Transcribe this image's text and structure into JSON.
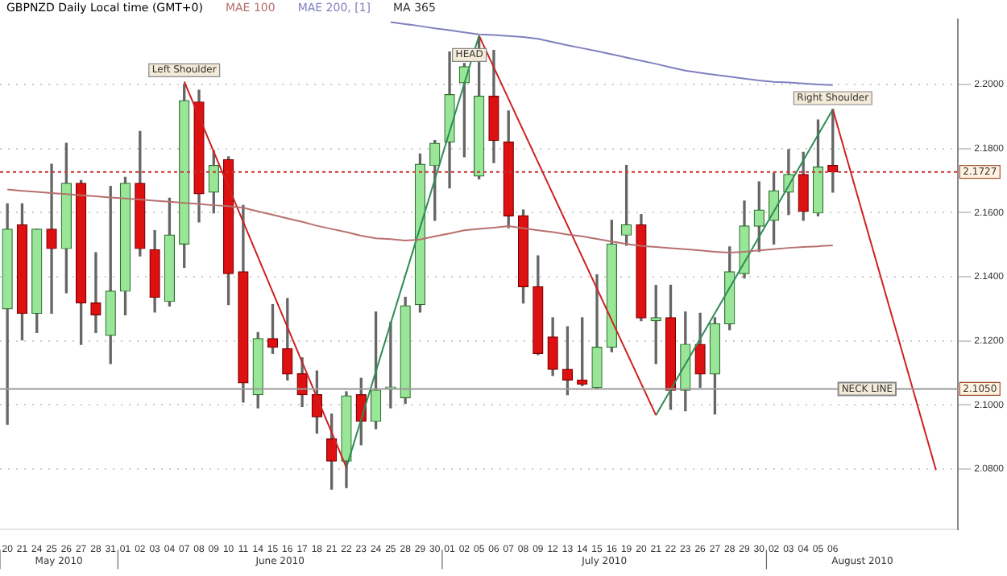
{
  "chart_data": {
    "type": "candlestick",
    "title": "GBPNZD Daily Local time (GMT+0)",
    "categories": [
      "20",
      "21",
      "24",
      "25",
      "26",
      "27",
      "28",
      "31",
      "01",
      "02",
      "03",
      "04",
      "07",
      "08",
      "09",
      "10",
      "11",
      "14",
      "15",
      "16",
      "17",
      "18",
      "21",
      "22",
      "23",
      "24",
      "25",
      "28",
      "29",
      "30",
      "01",
      "02",
      "05",
      "06",
      "07",
      "08",
      "09",
      "12",
      "13",
      "14",
      "15",
      "16",
      "19",
      "20",
      "21",
      "22",
      "23",
      "26",
      "27",
      "28",
      "29",
      "30",
      "02",
      "03",
      "04",
      "05",
      "06",
      null,
      null,
      null,
      null,
      null,
      null,
      null,
      null
    ],
    "ohlc": [
      [
        2.13,
        2.1627,
        2.094,
        2.1548
      ],
      [
        2.1562,
        2.1627,
        2.1203,
        2.1286
      ],
      [
        2.1286,
        2.1548,
        2.1226,
        2.1548
      ],
      [
        2.1548,
        2.1751,
        2.1286,
        2.1488
      ],
      [
        2.1488,
        2.1816,
        2.135,
        2.1691
      ],
      [
        2.1691,
        2.17,
        2.1189,
        2.1318
      ],
      [
        2.1318,
        2.1475,
        2.1226,
        2.1281
      ],
      [
        2.1217,
        2.1682,
        2.1129,
        2.1355
      ],
      [
        2.1355,
        2.171,
        2.1281,
        2.1691
      ],
      [
        2.1691,
        2.1853,
        2.1465,
        2.1488
      ],
      [
        2.1484,
        2.1544,
        2.129,
        2.1336
      ],
      [
        2.1323,
        2.1645,
        2.1309,
        2.153
      ],
      [
        2.1502,
        2.2,
        2.1429,
        2.1949
      ],
      [
        2.1945,
        2.1982,
        2.1571,
        2.1659
      ],
      [
        2.1664,
        2.1793,
        2.1599,
        2.1747
      ],
      [
        2.1765,
        2.1774,
        2.1313,
        2.141
      ],
      [
        2.1415,
        2.1622,
        2.1009,
        2.1069
      ],
      [
        2.1032,
        2.1226,
        2.0991,
        2.1207
      ],
      [
        2.1207,
        2.1313,
        2.1161,
        2.118
      ],
      [
        2.1175,
        2.1332,
        2.1078,
        2.1097
      ],
      [
        2.1097,
        2.1147,
        2.0995,
        2.1032
      ],
      [
        2.1032,
        2.1106,
        2.0912,
        2.0963
      ],
      [
        2.0894,
        2.0972,
        2.0737,
        2.0825
      ],
      [
        2.0825,
        2.1041,
        2.0742,
        2.1028
      ],
      [
        2.1032,
        2.1083,
        2.0876,
        2.0949
      ],
      [
        2.0949,
        2.129,
        2.0926,
        2.1046
      ],
      [
        2.1051,
        2.1258,
        2.0991,
        2.1053
      ],
      [
        2.1023,
        2.1336,
        2.1005,
        2.1309
      ],
      [
        2.1313,
        2.1783,
        2.129,
        2.1751
      ],
      [
        2.1747,
        2.1825,
        2.1576,
        2.1816
      ],
      [
        2.182,
        2.2101,
        2.1677,
        2.1968
      ],
      [
        2.2005,
        2.2065,
        2.1774,
        2.2055
      ],
      [
        2.1714,
        2.2147,
        2.1705,
        2.1963
      ],
      [
        2.1963,
        2.2106,
        2.1756,
        2.1825
      ],
      [
        2.182,
        2.1917,
        2.1553,
        2.159
      ],
      [
        2.159,
        2.1608,
        2.1318,
        2.1369
      ],
      [
        2.1369,
        2.1465,
        2.1157,
        2.1161
      ],
      [
        2.1212,
        2.1272,
        2.1092,
        2.1111
      ],
      [
        2.1111,
        2.1244,
        2.1032,
        2.1078
      ],
      [
        2.1078,
        2.1272,
        2.106,
        2.1065
      ],
      [
        2.1055,
        2.1406,
        2.1051,
        2.118
      ],
      [
        2.118,
        2.1576,
        2.1166,
        2.1502
      ],
      [
        2.153,
        2.1747,
        2.1498,
        2.1562
      ],
      [
        2.1562,
        2.1594,
        2.1263,
        2.1272
      ],
      [
        2.1263,
        2.1373,
        2.1129,
        2.1272
      ],
      [
        2.1272,
        2.1373,
        2.0986,
        2.1046
      ],
      [
        2.1046,
        2.129,
        2.0982,
        2.1189
      ],
      [
        2.1189,
        2.1286,
        2.1055,
        2.1097
      ],
      [
        2.1097,
        2.1272,
        2.0972,
        2.1253
      ],
      [
        2.1253,
        2.1493,
        2.1235,
        2.1415
      ],
      [
        2.141,
        2.1636,
        2.1396,
        2.1558
      ],
      [
        2.1558,
        2.1696,
        2.1479,
        2.1608
      ],
      [
        2.1576,
        2.1724,
        2.1502,
        2.1668
      ],
      [
        2.1664,
        2.1797,
        2.1594,
        2.1719
      ],
      [
        2.1719,
        2.1788,
        2.1576,
        2.1604
      ],
      [
        2.1599,
        2.1889,
        2.159,
        2.1742
      ],
      [
        2.1747,
        2.1922,
        2.1664,
        2.1727
      ],
      null,
      null,
      null,
      null,
      null,
      null,
      null,
      null
    ],
    "series": [
      {
        "type": "line",
        "name": "MAE 100",
        "color": "#b87070",
        "values": [
          2.1672,
          2.1668,
          2.1665,
          2.1661,
          2.1658,
          2.1654,
          2.1651,
          2.1647,
          2.1644,
          2.1641,
          2.1637,
          2.1634,
          2.163,
          2.1627,
          2.1623,
          2.162,
          2.1615,
          2.1604,
          2.1593,
          2.1582,
          2.1571,
          2.1559,
          2.1549,
          2.1539,
          2.1528,
          2.152,
          2.1517,
          2.1513,
          2.1516,
          2.1526,
          2.1535,
          2.1545,
          2.1549,
          2.1553,
          2.1558,
          2.1551,
          2.1545,
          2.1539,
          2.1532,
          2.1526,
          2.1518,
          2.151,
          2.1502,
          2.1496,
          2.1493,
          2.1489,
          2.1486,
          2.1482,
          2.1478,
          2.1475,
          2.1478,
          2.1482,
          2.1486,
          2.149,
          2.1493,
          2.1495,
          2.1498,
          null,
          null,
          null,
          null,
          null,
          null,
          null,
          null
        ]
      },
      {
        "type": "line",
        "name": "MAE 200, [1]",
        "color": "#8080c0",
        "values": [
          null,
          null,
          null,
          null,
          null,
          null,
          null,
          null,
          null,
          null,
          null,
          null,
          null,
          null,
          null,
          null,
          null,
          null,
          null,
          null,
          null,
          null,
          null,
          null,
          null,
          null,
          2.2194,
          2.2188,
          2.2182,
          2.2175,
          2.2169,
          2.2162,
          2.2156,
          2.2154,
          2.2151,
          2.2148,
          2.2142,
          2.2132,
          2.2122,
          2.2113,
          2.2104,
          2.2094,
          2.2084,
          2.2074,
          2.2064,
          2.2053,
          2.2043,
          2.2036,
          2.203,
          2.2024,
          2.2018,
          2.2012,
          2.2008,
          2.2006,
          2.2003,
          2.2,
          2.1998,
          null,
          null,
          null,
          null,
          null,
          null,
          null,
          null
        ]
      },
      {
        "type": "line",
        "name": "MA 365",
        "color": "#333333",
        "values": [
          null,
          null,
          null,
          null,
          null,
          null,
          null,
          null,
          null,
          null,
          null,
          null,
          null,
          null,
          null,
          null,
          null,
          null,
          null,
          null,
          null,
          null,
          null,
          null,
          null,
          null,
          null,
          null,
          null,
          null,
          null,
          null,
          null,
          null,
          null,
          null,
          null,
          null,
          null,
          null,
          null,
          null,
          null,
          null,
          null,
          null,
          null,
          null,
          null,
          null,
          null,
          null,
          null,
          null,
          null,
          null,
          null,
          null,
          null,
          null,
          null,
          null,
          null,
          null,
          null
        ]
      },
      {
        "type": "line",
        "color": "#cc2222",
        "values": [
          null,
          null,
          null,
          null,
          null,
          null,
          null,
          null,
          null,
          null,
          null,
          null,
          2.2009,
          null,
          null,
          null,
          null,
          null,
          null,
          null,
          null,
          null,
          null,
          2.0805,
          null,
          null,
          null,
          null,
          null,
          null,
          null,
          null,
          null,
          null,
          null,
          null,
          null,
          null,
          null,
          null,
          null,
          null,
          null,
          null,
          null,
          null,
          null,
          null,
          null,
          null,
          null,
          null,
          null,
          null,
          null,
          null,
          null,
          null,
          null,
          null,
          null,
          null,
          null,
          null,
          null
        ],
        "value_labels": [
          null,
          null,
          null,
          null,
          null,
          null,
          null,
          null,
          null,
          null,
          null,
          null,
          "Left Shoulder",
          null,
          null,
          null,
          null,
          null,
          null,
          null,
          null,
          null,
          null,
          null,
          null,
          null,
          null,
          null,
          null,
          null,
          null,
          null,
          null,
          null,
          null,
          null,
          null,
          null,
          null,
          null,
          null,
          null,
          null,
          null,
          null,
          null,
          null,
          null,
          null,
          null,
          null,
          null,
          null,
          null,
          null,
          null,
          null,
          null,
          null,
          null,
          null,
          null,
          null,
          null,
          null
        ]
      },
      {
        "type": "line",
        "color": "#2e8b57",
        "values": [
          null,
          null,
          null,
          null,
          null,
          null,
          null,
          null,
          null,
          null,
          null,
          null,
          null,
          null,
          null,
          null,
          null,
          null,
          null,
          null,
          null,
          null,
          null,
          2.0805,
          null,
          null,
          null,
          null,
          null,
          null,
          null,
          null,
          2.2152,
          null,
          null,
          null,
          null,
          null,
          null,
          null,
          null,
          null,
          null,
          null,
          null,
          null,
          null,
          null,
          null,
          null,
          null,
          null,
          null,
          null,
          null,
          null,
          null,
          null,
          null,
          null,
          null,
          null,
          null,
          null,
          null
        ]
      },
      {
        "type": "line",
        "color": "#cc2222",
        "values": [
          null,
          null,
          null,
          null,
          null,
          null,
          null,
          null,
          null,
          null,
          null,
          null,
          null,
          null,
          null,
          null,
          null,
          null,
          null,
          null,
          null,
          null,
          null,
          null,
          null,
          null,
          null,
          null,
          null,
          null,
          null,
          null,
          2.2152,
          null,
          null,
          null,
          null,
          null,
          null,
          null,
          null,
          null,
          null,
          null,
          2.0968,
          null,
          null,
          null,
          null,
          null,
          null,
          null,
          null,
          null,
          null,
          null,
          null,
          null,
          null,
          null,
          null,
          null,
          null,
          null,
          null
        ],
        "value_labels": [
          null,
          null,
          null,
          null,
          null,
          null,
          null,
          null,
          null,
          null,
          null,
          null,
          null,
          null,
          null,
          null,
          null,
          null,
          null,
          null,
          null,
          null,
          null,
          null,
          null,
          null,
          null,
          null,
          null,
          null,
          null,
          null,
          "HEAD",
          null,
          null,
          null,
          null,
          null,
          null,
          null,
          null,
          null,
          null,
          null,
          null,
          null,
          null,
          null,
          null,
          null,
          null,
          null,
          null,
          null,
          null,
          null,
          null,
          null,
          null,
          null,
          null,
          null,
          null,
          null,
          null
        ]
      },
      {
        "type": "line",
        "color": "#2e8b57",
        "values": [
          null,
          null,
          null,
          null,
          null,
          null,
          null,
          null,
          null,
          null,
          null,
          null,
          null,
          null,
          null,
          null,
          null,
          null,
          null,
          null,
          null,
          null,
          null,
          null,
          null,
          null,
          null,
          null,
          null,
          null,
          null,
          null,
          null,
          null,
          null,
          null,
          null,
          null,
          null,
          null,
          null,
          null,
          null,
          null,
          2.0968,
          null,
          null,
          null,
          null,
          null,
          null,
          null,
          null,
          null,
          null,
          null,
          2.1922,
          null,
          null,
          null,
          null,
          null,
          null,
          null,
          null
        ]
      },
      {
        "type": "line",
        "color": "#cc2222",
        "values": [
          null,
          null,
          null,
          null,
          null,
          null,
          null,
          null,
          null,
          null,
          null,
          null,
          null,
          null,
          null,
          null,
          null,
          null,
          null,
          null,
          null,
          null,
          null,
          null,
          null,
          null,
          null,
          null,
          null,
          null,
          null,
          null,
          null,
          null,
          null,
          null,
          null,
          null,
          null,
          null,
          null,
          null,
          null,
          null,
          null,
          null,
          null,
          null,
          null,
          null,
          null,
          null,
          null,
          null,
          null,
          null,
          2.1922,
          null,
          null,
          null,
          null,
          null,
          null,
          2.0797,
          null
        ],
        "value_labels": [
          null,
          null,
          null,
          null,
          null,
          null,
          null,
          null,
          null,
          null,
          null,
          null,
          null,
          null,
          null,
          null,
          null,
          null,
          null,
          null,
          null,
          null,
          null,
          null,
          null,
          null,
          null,
          null,
          null,
          null,
          null,
          null,
          null,
          null,
          null,
          null,
          null,
          null,
          null,
          null,
          null,
          null,
          null,
          null,
          null,
          null,
          null,
          null,
          null,
          null,
          null,
          null,
          null,
          null,
          null,
          null,
          "Right Shoulder",
          null,
          null,
          null,
          null,
          null,
          null,
          null,
          null
        ]
      }
    ],
    "ylim": [
      2.0613,
      2.2203
    ],
    "yticks": [
      {
        "value": 2.08,
        "label": "2.0800"
      },
      {
        "value": 2.1,
        "label": "2.1000"
      },
      {
        "value": 2.12,
        "label": "2.1200"
      },
      {
        "value": 2.14,
        "label": "2.1400"
      },
      {
        "value": 2.16,
        "label": "2.1600"
      },
      {
        "value": 2.18,
        "label": "2.1800"
      },
      {
        "value": 2.2,
        "label": "2.2000"
      }
    ],
    "ref_lines": [
      {
        "axis": "y",
        "value": 2.1727,
        "color": "#cc3333",
        "line_style": "dotted"
      },
      {
        "axis": "y",
        "value": 2.105,
        "label": "NECK LINE",
        "color": "#999999"
      }
    ],
    "annotations": [
      "May 2010",
      "June 2010",
      "July 2010",
      "August 2010",
      {
        "text": "2.1727",
        "y": 2.1727
      },
      {
        "text": "2.1050",
        "y": 2.105
      }
    ],
    "grid": "y",
    "legend": "top"
  }
}
